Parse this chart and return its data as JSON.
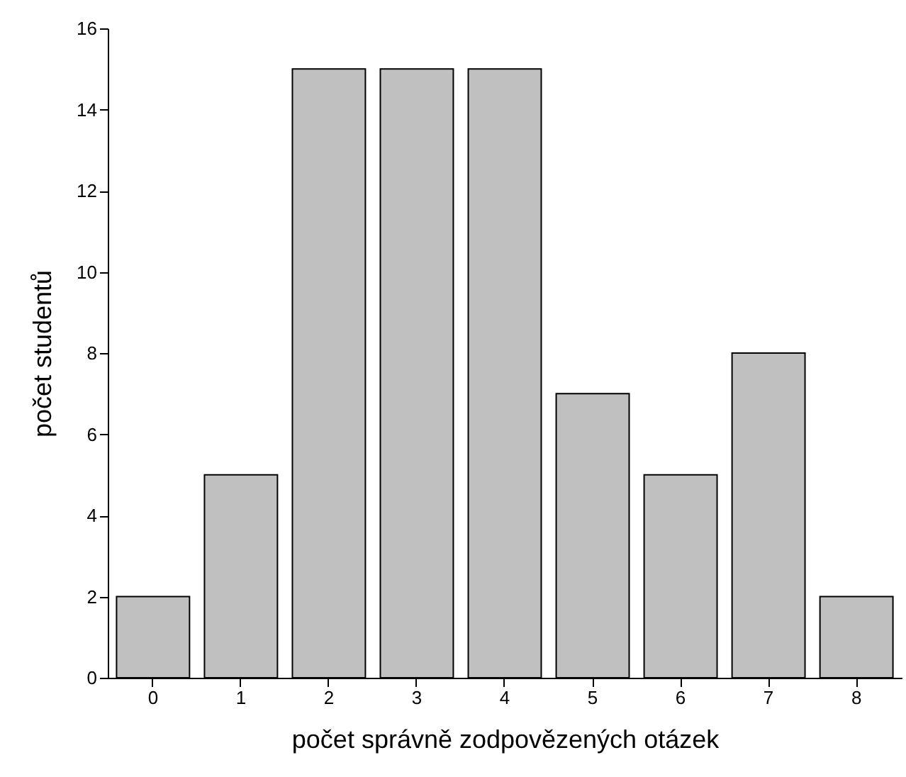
{
  "chart_data": {
    "type": "bar",
    "xlabel": "počet správně zodpovězených otázek",
    "ylabel": "počet studentů",
    "categories": [
      "0",
      "1",
      "2",
      "3",
      "4",
      "5",
      "6",
      "7",
      "8"
    ],
    "values": [
      2,
      5,
      15,
      15,
      15,
      7,
      5,
      8,
      2
    ],
    "color": "#c0c0c0",
    "ylim": [
      0,
      16
    ],
    "yticks": [
      0,
      2,
      4,
      6,
      8,
      10,
      12,
      14,
      16
    ],
    "grid": false
  }
}
